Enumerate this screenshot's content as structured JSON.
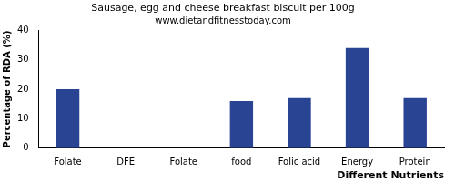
{
  "chart_data": {
    "type": "bar",
    "title": "Sausage, egg and cheese breakfast biscuit per 100g",
    "subtitle": "www.dietandfitnesstoday.com",
    "x_label": "Different Nutrients",
    "y_label": "Percentage of RDA (%)",
    "categories": [
      "Folate",
      "DFE",
      "Folate",
      "food",
      "Folic acid",
      "Energy",
      "Protein"
    ],
    "values": [
      20,
      0,
      0,
      16,
      17,
      34,
      17
    ],
    "color": "#2a4494",
    "ylim": [
      0,
      40
    ],
    "yticks": [
      0,
      10,
      20,
      30,
      40
    ],
    "grid": false
  }
}
